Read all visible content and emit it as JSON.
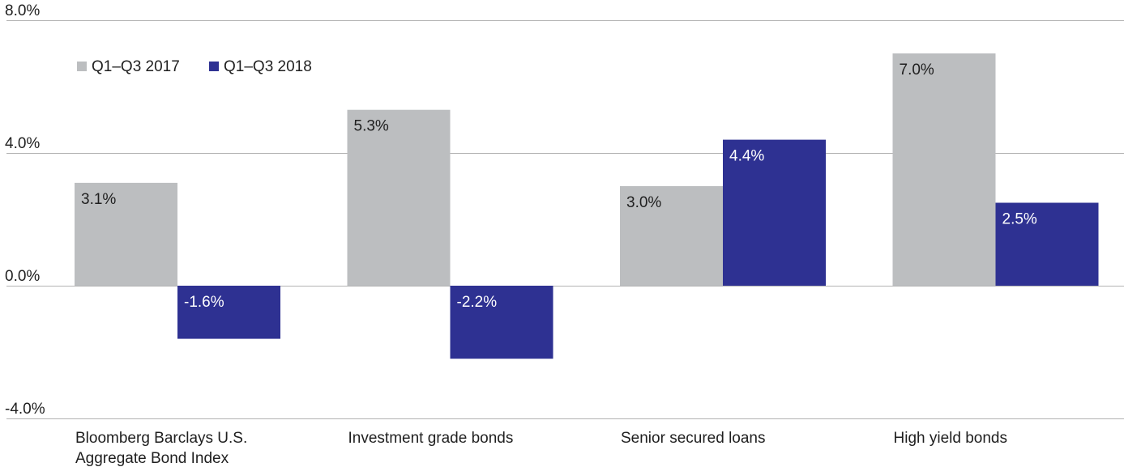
{
  "chart_data": {
    "type": "bar",
    "title": "",
    "xlabel": "",
    "ylabel": "",
    "categories": [
      [
        "Bloomberg Barclays U.S.",
        "Aggregate Bond Index"
      ],
      [
        "Investment grade bonds"
      ],
      [
        "Senior secured loans"
      ],
      [
        "High yield bonds"
      ]
    ],
    "series": [
      {
        "name": "Q1–Q3 2017",
        "color": "#bcbec0",
        "label_color": "#1f1f1f",
        "values": [
          3.1,
          5.3,
          3.0,
          7.0
        ],
        "labels": [
          "3.1%",
          "5.3%",
          "3.0%",
          "7.0%"
        ]
      },
      {
        "name": "Q1–Q3 2018",
        "color": "#2e3192",
        "label_color": "#ffffff",
        "values": [
          -1.6,
          -2.2,
          4.4,
          2.5
        ],
        "labels": [
          "-1.6%",
          "-2.2%",
          "4.4%",
          "2.5%"
        ]
      }
    ],
    "ylim": [
      -4.0,
      8.0
    ],
    "yticks": [
      {
        "value": 8.0,
        "label": "8.0%"
      },
      {
        "value": 4.0,
        "label": "4.0%"
      },
      {
        "value": 0.0,
        "label": "0.0%"
      },
      {
        "value": -4.0,
        "label": "-4.0%"
      }
    ],
    "grid": true,
    "legend_position": "top-left",
    "colors": {
      "gridline": "#b3b3b3",
      "text": "#1f1f1f"
    }
  }
}
